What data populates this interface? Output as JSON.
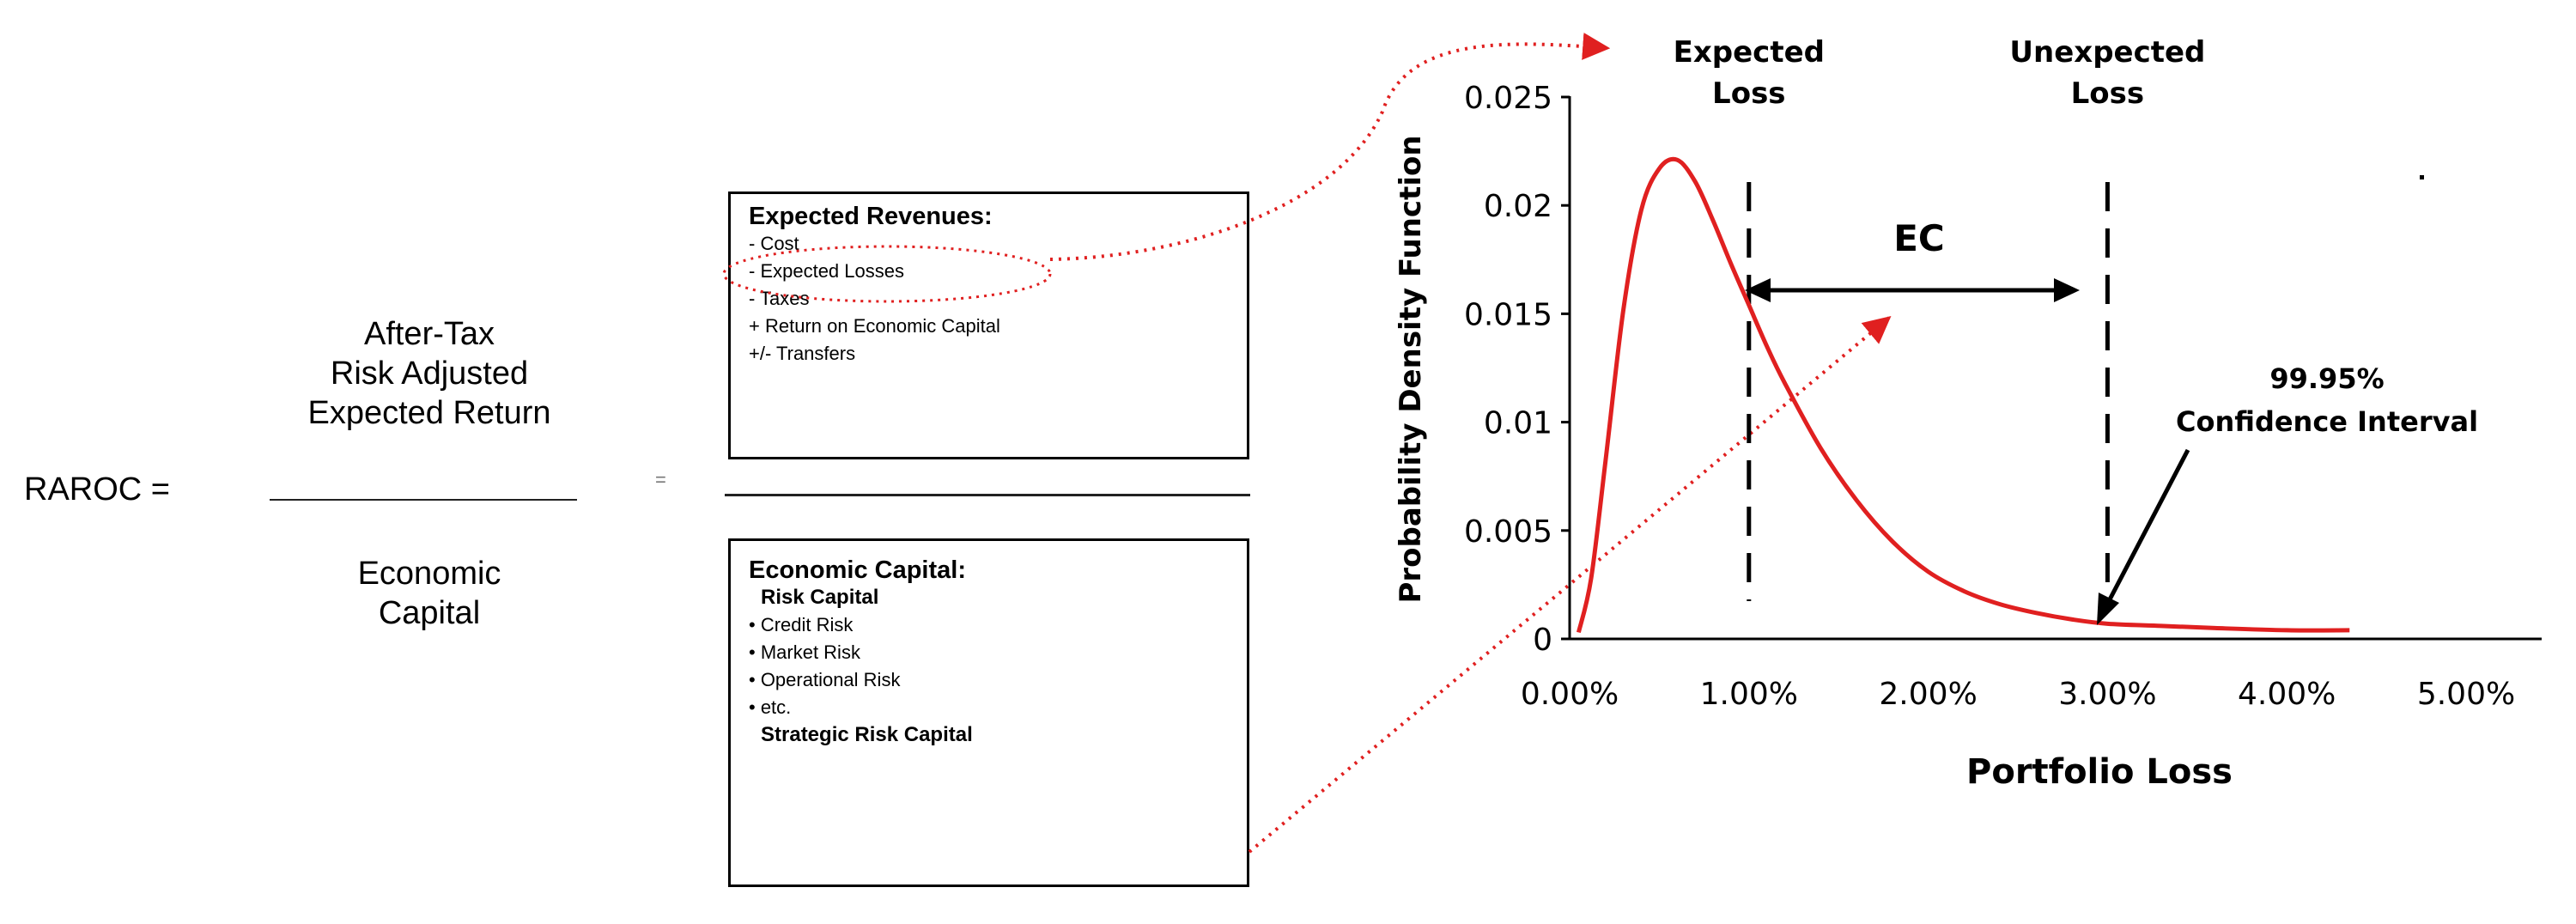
{
  "formula": {
    "lhs": "RAROC =",
    "numerator": [
      "After-Tax",
      "Risk Adjusted",
      "Expected Return"
    ],
    "denominator": [
      "Economic",
      "Capital"
    ],
    "equals": "="
  },
  "revenues_box": {
    "title": "Expected Revenues:",
    "lines": [
      "- Cost",
      "- Expected Losses",
      "- Taxes",
      "+ Return on Economic Capital",
      "+/- Transfers"
    ]
  },
  "capital_box": {
    "title": "Economic Capital:",
    "subtitle": "Risk Capital",
    "items": [
      "• Credit Risk",
      "• Market Risk",
      "• Operational Risk",
      "• etc."
    ],
    "footer": "Strategic Risk Capital"
  },
  "chart_data": {
    "type": "line",
    "x_unit": "%",
    "xlabel": "Portfolio Loss",
    "ylabel": "Probability Density Function",
    "xlim": [
      0,
      5
    ],
    "ylim": [
      0,
      0.025
    ],
    "x_ticks": [
      "0.00%",
      "1.00%",
      "2.00%",
      "3.00%",
      "4.00%",
      "5.00%"
    ],
    "y_ticks": [
      "0",
      "0.005",
      "0.01",
      "0.015",
      "0.02",
      "0.025"
    ],
    "series": [
      {
        "color": "#e02020",
        "x": [
          0.05,
          0.12,
          0.2,
          0.3,
          0.4,
          0.5,
          0.6,
          0.7,
          0.8,
          0.9,
          1.0,
          1.1,
          1.2,
          1.4,
          1.6,
          1.8,
          2.0,
          2.2,
          2.4,
          2.6,
          2.8,
          3.0,
          3.3,
          3.6,
          4.0,
          4.35
        ],
        "y": [
          0.0003,
          0.0028,
          0.0082,
          0.0152,
          0.0198,
          0.0217,
          0.0221,
          0.0211,
          0.0193,
          0.0173,
          0.0154,
          0.0135,
          0.0118,
          0.0088,
          0.0064,
          0.0045,
          0.0031,
          0.0022,
          0.0016,
          0.0012,
          0.0009,
          0.0007,
          0.0006,
          0.0005,
          0.0004,
          0.0004
        ]
      }
    ],
    "markers": [
      {
        "x": 1.0,
        "label": [
          "Expected",
          "Loss"
        ]
      },
      {
        "x": 3.0,
        "label": [
          "Unexpected",
          "Loss"
        ]
      }
    ],
    "ec_label": "EC",
    "confidence_label": [
      "99.95%",
      "Confidence Interval"
    ]
  }
}
